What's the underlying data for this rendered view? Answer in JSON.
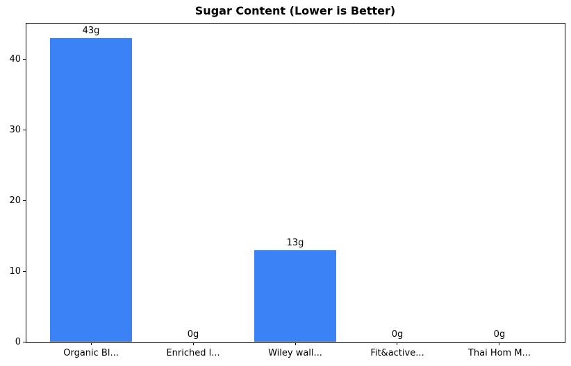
{
  "chart_data": {
    "type": "bar",
    "title": "Sugar Content (Lower is Better)",
    "categories": [
      "Organic Bl...",
      "Enriched l...",
      "Wiley wall...",
      "Fit&active...",
      "Thai Hom M..."
    ],
    "values": [
      43,
      0,
      13,
      0,
      0
    ],
    "bar_labels": [
      "43g",
      "0g",
      "13g",
      "0g",
      "0g"
    ],
    "xlabel": "",
    "ylabel": "",
    "yticks": [
      0,
      10,
      20,
      30,
      40
    ],
    "ylim": [
      0,
      45.15
    ],
    "xlim": [
      -0.64,
      4.64
    ],
    "bar_width": 0.8,
    "bar_color": "#3b82f6",
    "axis_color": "#000000",
    "text_color": "#000000",
    "background_color": "#ffffff",
    "grid": false,
    "legend": "none"
  }
}
